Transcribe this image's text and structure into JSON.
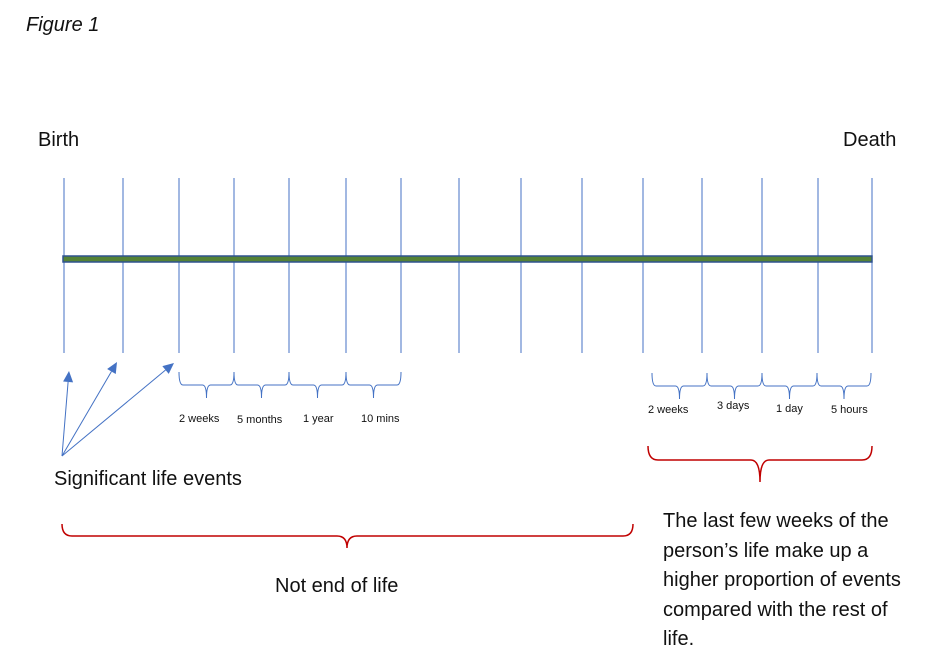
{
  "figure_label": "Figure 1",
  "timeline": {
    "start_label": "Birth",
    "end_label": "Death",
    "bar_fill": "#548235",
    "bar_stroke": "#2f528f",
    "tick_color": "#4472c4",
    "tick_count": 15
  },
  "early_intervals": [
    "2 weeks",
    "5 months",
    "1 year",
    "10 mins"
  ],
  "late_intervals": [
    "2 weeks",
    "3 days",
    "1 day",
    "5 hours"
  ],
  "annotations": {
    "significant_events": "Significant life events",
    "not_end_of_life": "Not end of life",
    "last_weeks": "The last few weeks of the person’s life make up a higher proportion of events compared with the rest of life."
  },
  "brace_colors": {
    "interval": "#4472c4",
    "section": "#c00000"
  }
}
